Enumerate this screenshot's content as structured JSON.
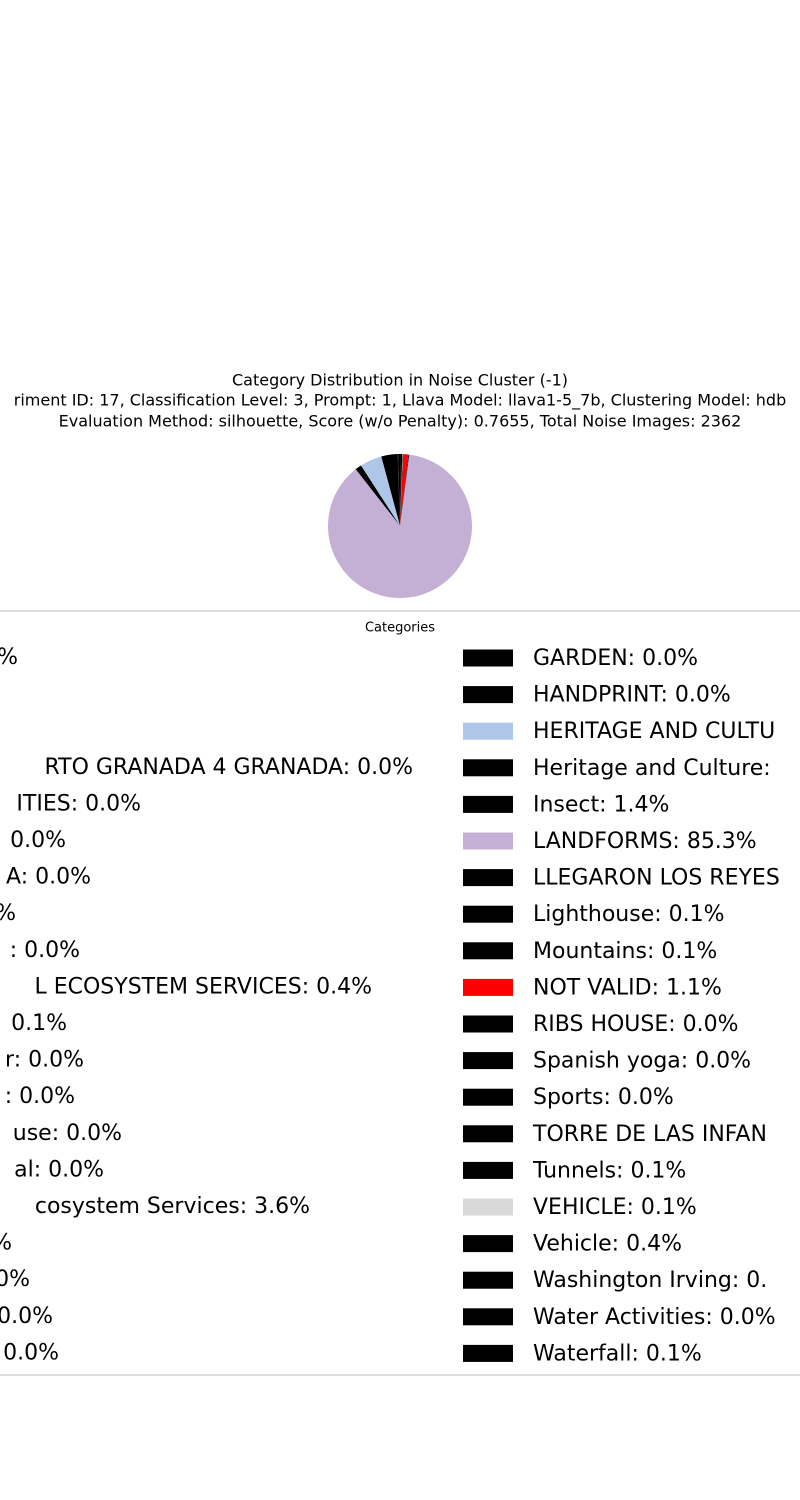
{
  "chart_data": {
    "type": "pie",
    "title": "Category Distribution in Noise Cluster (-1)",
    "subtitle": "riment ID: 17, Classification Level: 3, Prompt: 1, Llava Model: llava1-5_7b, Clustering Model: hdb",
    "subtitle2": "Evaluation Method: silhouette, Score (w/o Penalty): 0.7655, Total Noise Images: 2362",
    "legend_title": "Categories",
    "categories": [
      "%",
      null,
      null,
      "RTO GRANADA 4 GRANADA: 0.0%",
      "ITIES: 0.0%",
      "0.0%",
      "A: 0.0%",
      "%",
      ": 0.0%",
      "L ECOSYSTEM SERVICES: 0.4%",
      "0.1%",
      "r: 0.0%",
      ": 0.0%",
      "use: 0.0%",
      "al: 0.0%",
      "cosystem Services: 3.6%",
      "%",
      "0%",
      "0.0%",
      "0.0%",
      "GARDEN: 0.0%",
      "HANDPRINT: 0.0%",
      "HERITAGE AND CULTU",
      "Heritage and Culture:",
      "Insect: 1.4%",
      "LANDFORMS: 85.3%",
      "LLEGARON LOS REYES",
      "Lighthouse: 0.1%",
      "Mountains: 0.1%",
      "NOT VALID: 1.1%",
      "RIBS HOUSE: 0.0%",
      "Spanish yoga: 0.0%",
      "Sports: 0.0%",
      "TORRE DE LAS INFAN",
      "Tunnels: 0.1%",
      "VEHICLE: 0.1%",
      "Vehicle: 0.4%",
      "Washington Irving: 0.",
      "Water Activities: 0.0%",
      "Waterfall: 0.1%"
    ],
    "values": [
      null,
      null,
      null,
      0,
      0,
      0,
      0,
      null,
      0,
      0.4,
      0.1,
      0,
      0,
      0,
      0,
      3.6,
      null,
      null,
      0,
      0,
      0,
      0,
      4.8,
      null,
      1.4,
      85.3,
      null,
      0.1,
      0.1,
      1.1,
      0,
      0,
      0,
      null,
      0.1,
      0.1,
      0.4,
      null,
      0,
      0.1
    ],
    "colors": [
      "#000000",
      "#000000",
      "#000000",
      "#000000",
      "#000000",
      "#000000",
      "#000000",
      "#000000",
      "#000000",
      "#000000",
      "#000000",
      "#000000",
      "#000000",
      "#000000",
      "#000000",
      "#000000",
      "#000000",
      "#000000",
      "#000000",
      "#000000",
      "#000000",
      "#000000",
      "#aec7e8",
      "#000000",
      "#000000",
      "#c5b0d5",
      "#000000",
      "#000000",
      "#000000",
      "#ff0000",
      "#000000",
      "#000000",
      "#000000",
      "#000000",
      "#000000",
      "#d9d9d9",
      "#000000",
      "#000000",
      "#000000",
      "#000000"
    ]
  }
}
